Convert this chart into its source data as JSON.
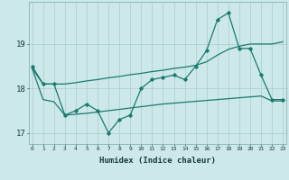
{
  "title": "",
  "xlabel": "Humidex (Indice chaleur)",
  "bg_color": "#cce8e8",
  "line_color": "#1a7a6e",
  "grid_color": "#aacccc",
  "x_values": [
    0,
    1,
    2,
    3,
    4,
    5,
    6,
    7,
    8,
    9,
    10,
    11,
    12,
    13,
    14,
    15,
    16,
    17,
    18,
    19,
    20,
    21,
    22,
    23
  ],
  "main_line": [
    18.5,
    18.1,
    18.1,
    17.4,
    17.5,
    17.65,
    17.5,
    17.0,
    17.3,
    17.4,
    18.0,
    18.2,
    18.25,
    18.3,
    18.2,
    18.5,
    18.85,
    19.55,
    19.7,
    18.9,
    18.9,
    18.3,
    17.75,
    17.75
  ],
  "upper_line": [
    18.45,
    18.1,
    18.1,
    18.1,
    18.13,
    18.17,
    18.2,
    18.24,
    18.27,
    18.31,
    18.34,
    18.38,
    18.41,
    18.45,
    18.48,
    18.52,
    18.6,
    18.75,
    18.88,
    18.95,
    19.0,
    19.0,
    19.0,
    19.05
  ],
  "lower_line": [
    18.45,
    17.75,
    17.7,
    17.4,
    17.42,
    17.44,
    17.47,
    17.5,
    17.53,
    17.56,
    17.59,
    17.62,
    17.65,
    17.67,
    17.69,
    17.71,
    17.73,
    17.75,
    17.77,
    17.79,
    17.81,
    17.83,
    17.72,
    17.72
  ],
  "ylim": [
    16.75,
    19.95
  ],
  "yticks": [
    17,
    18,
    19
  ],
  "xticks": [
    0,
    1,
    2,
    3,
    4,
    5,
    6,
    7,
    8,
    9,
    10,
    11,
    12,
    13,
    14,
    15,
    16,
    17,
    18,
    19,
    20,
    21,
    22,
    23
  ]
}
